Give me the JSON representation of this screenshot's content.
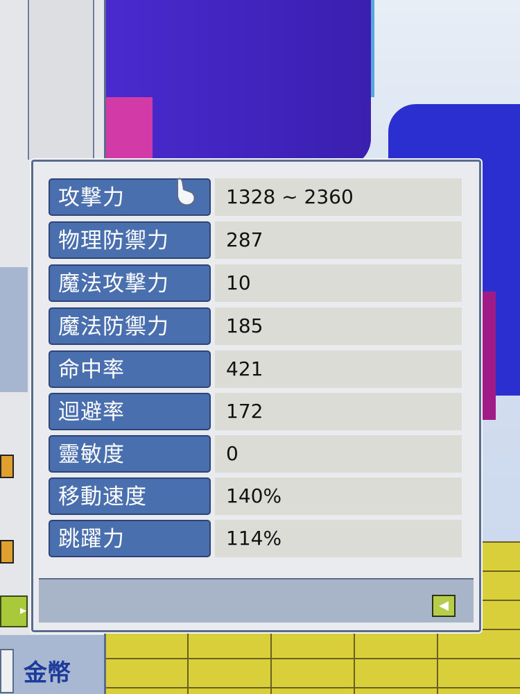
{
  "stats_window": {
    "rows": [
      {
        "label": "攻撃力",
        "value": "1328 ~ 2360"
      },
      {
        "label": "物理防禦力",
        "value": "287"
      },
      {
        "label": "魔法攻撃力",
        "value": "10"
      },
      {
        "label": "魔法防禦力",
        "value": "185"
      },
      {
        "label": "命中率",
        "value": "421"
      },
      {
        "label": "迴避率",
        "value": "172"
      },
      {
        "label": "靈敏度",
        "value": "0"
      },
      {
        "label": "移動速度",
        "value": "140%"
      },
      {
        "label": "跳躍力",
        "value": "114%"
      }
    ],
    "back_icon": "arrow-left-icon"
  },
  "left_window": {
    "coin_label": "金幣"
  },
  "colors": {
    "label_bg": "#4a6fae",
    "value_bg": "#dcdcd6",
    "button_green": "#b6cc4a"
  }
}
